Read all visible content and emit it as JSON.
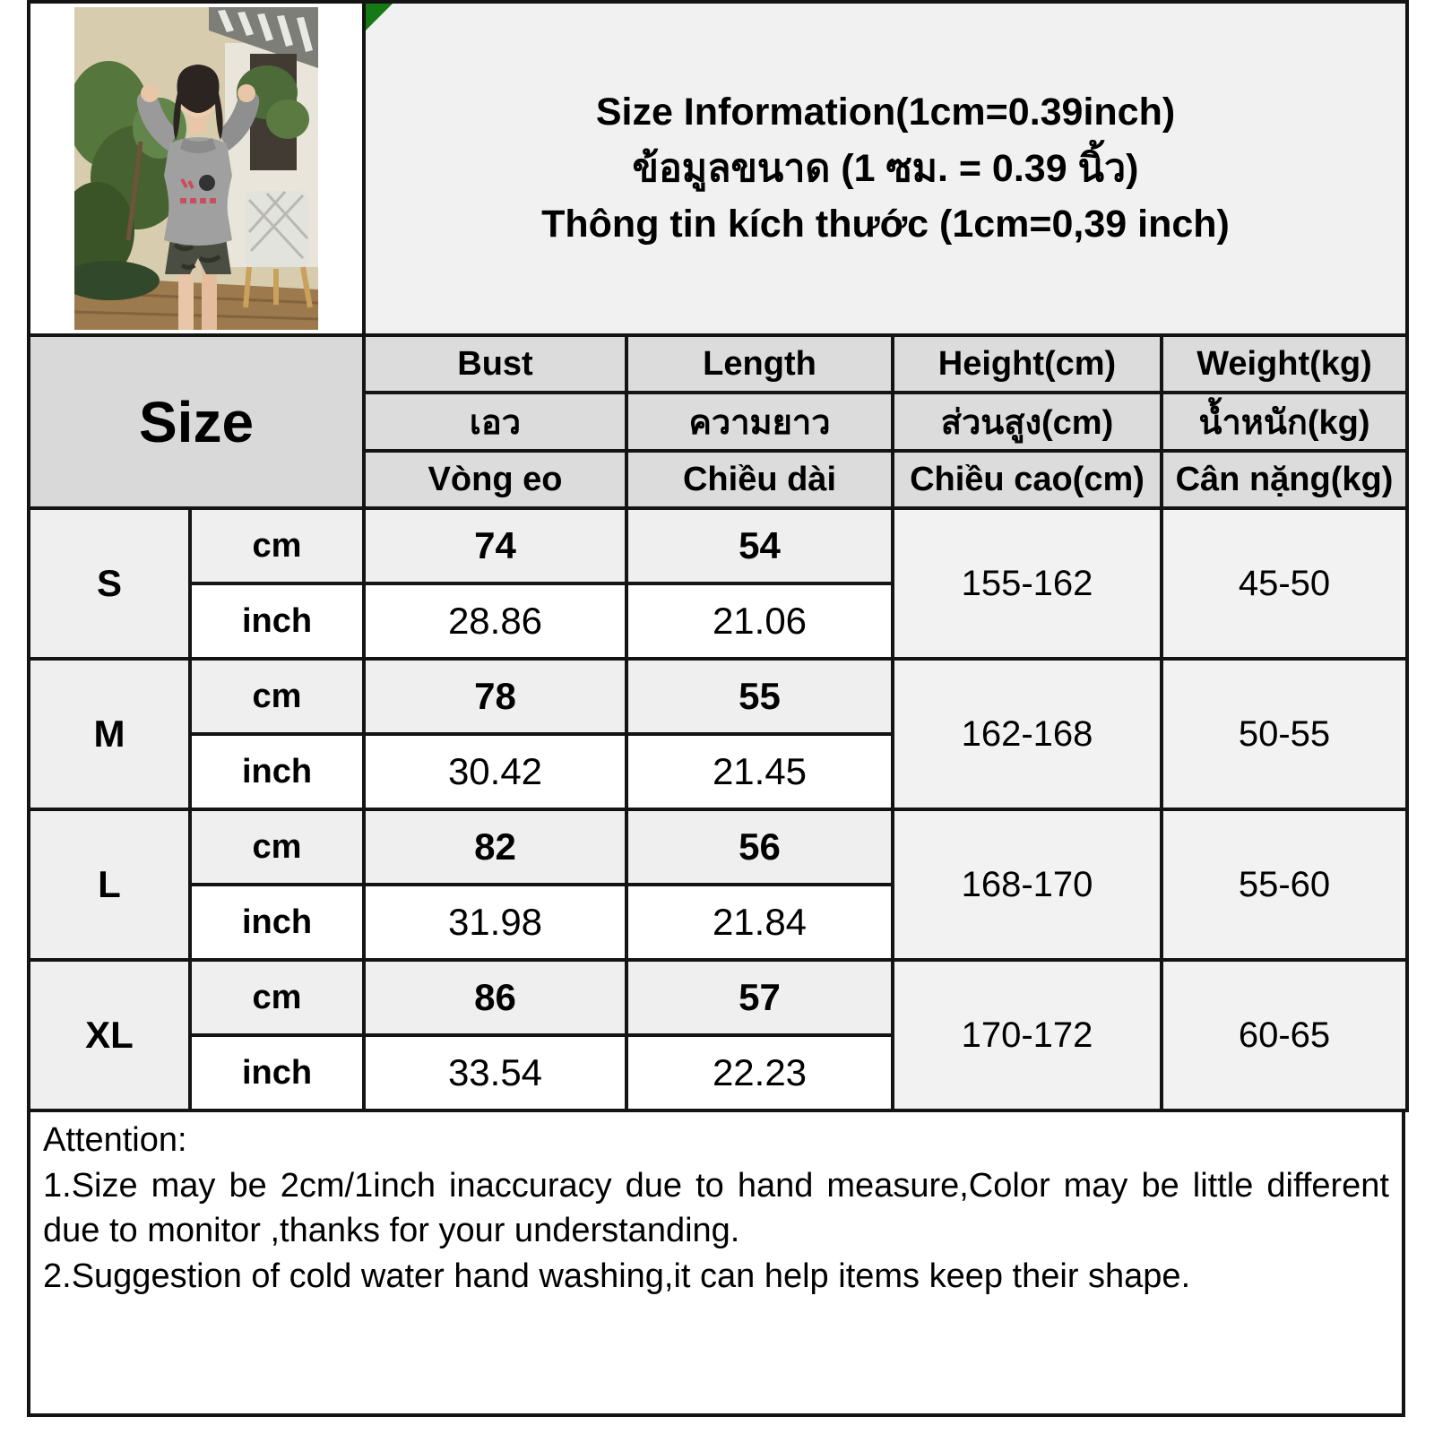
{
  "title": {
    "line_en": "Size Information(1cm=0.39inch)",
    "line_th": "ข้อมูลขนาด (1 ซม. = 0.39 นิ้ว)",
    "line_vi": "Thông tin kích thước (1cm=0,39 inch)"
  },
  "photo": {
    "description": "Model wearing fitted grey long-sleeve top with red chest print and dark denim shorts, posing outdoors by plants and a white chair",
    "marker_color": "#157a15"
  },
  "table": {
    "size_header": "Size",
    "columns": [
      {
        "en": "Bust",
        "th": "เอว",
        "vi": "Vòng eo"
      },
      {
        "en": "Length",
        "th": "ความยาว",
        "vi": "Chiều dài"
      },
      {
        "en": "Height(cm)",
        "th": "ส่วนสูง(cm)",
        "vi": "Chiều cao(cm)"
      },
      {
        "en": "Weight(kg)",
        "th": "น้ำหนัก(kg)",
        "vi": "Cân nặng(kg)"
      }
    ],
    "unit_labels": {
      "cm": "cm",
      "inch": "inch"
    },
    "rows": [
      {
        "size": "S",
        "cm": {
          "bust": "74",
          "length": "54"
        },
        "inch": {
          "bust": "28.86",
          "length": "21.06"
        },
        "height": "155-162",
        "weight": "45-50"
      },
      {
        "size": "M",
        "cm": {
          "bust": "78",
          "length": "55"
        },
        "inch": {
          "bust": "30.42",
          "length": "21.45"
        },
        "height": "162-168",
        "weight": "50-55"
      },
      {
        "size": "L",
        "cm": {
          "bust": "82",
          "length": "56"
        },
        "inch": {
          "bust": "31.98",
          "length": "21.84"
        },
        "height": "168-170",
        "weight": "55-60"
      },
      {
        "size": "XL",
        "cm": {
          "bust": "86",
          "length": "57"
        },
        "inch": {
          "bust": "33.54",
          "length": "22.23"
        },
        "height": "170-172",
        "weight": "60-65"
      }
    ]
  },
  "attention": {
    "heading": "Attention:",
    "items": [
      "1.Size may be 2cm/1inch inaccuracy due to hand measure,Color may be little different due to monitor ,thanks for your understanding.",
      "2.Suggestion of cold water hand washing,it can help items keep their shape."
    ]
  },
  "colors": {
    "border": "#141414",
    "header_bg": "#dcdcdc",
    "size_col_bg": "#d9d9d9",
    "cm_row_bg": "#f0efef",
    "inch_row_bg": "#ffffff",
    "range_bg": "#f2f2f2",
    "title_bg": "#f1f1f1",
    "marker_green": "#157a15"
  }
}
